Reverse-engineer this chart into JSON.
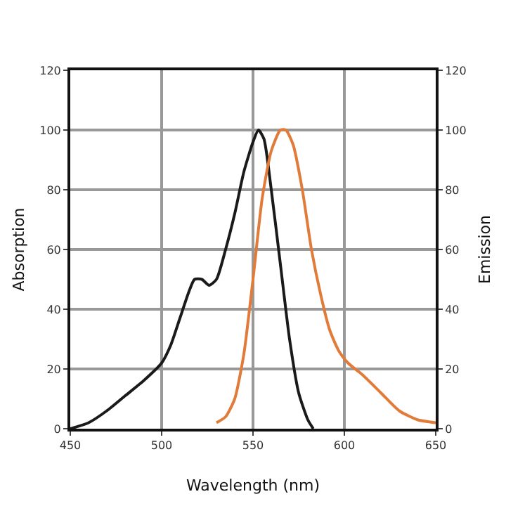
{
  "chart_data": {
    "type": "line",
    "xlabel": "Wavelength (nm)",
    "ylabel": "Absorption",
    "y2label": "Emission",
    "xlim": [
      450,
      650
    ],
    "xticks": [
      450,
      500,
      550,
      600,
      650
    ],
    "ylim": [
      0,
      120
    ],
    "yticks": [
      0,
      20,
      40,
      60,
      80,
      100,
      120
    ],
    "y2lim": [
      0,
      120
    ],
    "y2ticks": [
      0,
      20,
      40,
      60,
      80,
      100,
      120
    ],
    "grid": true,
    "marker": "none",
    "line_style": "solid",
    "series": [
      {
        "color": "#1a1a1a",
        "x": [
          450,
          460,
          470,
          480,
          490,
          500,
          505,
          510,
          515,
          518,
          522,
          526,
          530,
          535,
          540,
          545,
          550,
          553,
          556,
          560,
          565,
          570,
          575,
          580,
          583
        ],
        "values": [
          0,
          2,
          6,
          11,
          16,
          22,
          28,
          37,
          46,
          50,
          50,
          48,
          50,
          60,
          72,
          86,
          96,
          100,
          97,
          80,
          55,
          30,
          12,
          3,
          0
        ]
      },
      {
        "color": "#e07b39",
        "axis": "y2",
        "x": [
          530,
          535,
          540,
          545,
          550,
          555,
          560,
          565,
          568,
          572,
          577,
          582,
          587,
          592,
          597,
          602,
          610,
          620,
          630,
          640,
          650
        ],
        "values": [
          2,
          4,
          10,
          25,
          50,
          77,
          93,
          100,
          100,
          95,
          80,
          60,
          45,
          33,
          26,
          22,
          18,
          12,
          6,
          3,
          2
        ]
      }
    ]
  }
}
